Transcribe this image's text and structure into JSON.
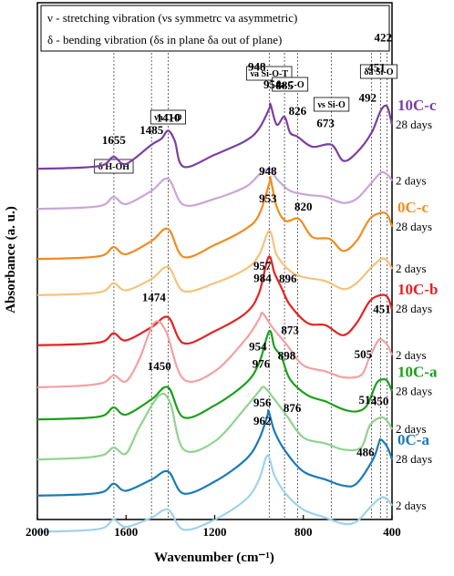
{
  "chart_data": {
    "type": "line",
    "xlabel": "Wavenumber (cm⁻¹)",
    "ylabel": "Absorbance (a. u.)",
    "xlim": [
      2000,
      400
    ],
    "x_ticks": [
      "2000",
      "1600",
      "1200",
      "800",
      "400"
    ],
    "x_tick_values": [
      2000,
      1600,
      1200,
      800,
      400
    ],
    "legend_lines": [
      "ν - stretching vibration (νs symmetrc νa asymmetric)",
      "δ - bending vibration (δs in plane δa out of plane)"
    ],
    "reference_lines": [
      1655,
      1485,
      1410,
      954,
      885,
      826,
      673,
      492,
      451,
      422
    ],
    "band_labels": [
      {
        "text": "δ  H-OH",
        "x": 1655
      },
      {
        "text": "νa C-O",
        "x": 1410
      },
      {
        "text": "νa Si-O-T",
        "x": 954
      },
      {
        "text": "δa C-O",
        "x": 860
      },
      {
        "text": "νs Si-O",
        "x": 673
      },
      {
        "text": "δa Si-O",
        "x": 460
      }
    ],
    "groups": [
      {
        "name": "10C-c",
        "color": "#7b3fa0"
      },
      {
        "name": "0C-c",
        "color": "#f08c1e"
      },
      {
        "name": "10C-b",
        "color": "#e52222"
      },
      {
        "name": "10C-a",
        "color": "#1aa01a"
      },
      {
        "name": "0C-a",
        "color": "#1a7ab8"
      }
    ],
    "series": [
      {
        "group": "10C-c",
        "age": "28 days",
        "color": "#7b3fa0",
        "offset": 8.7,
        "points": [
          [
            2000,
            0.0
          ],
          [
            1800,
            0.03
          ],
          [
            1700,
            0.1
          ],
          [
            1655,
            0.3
          ],
          [
            1600,
            0.12
          ],
          [
            1485,
            0.6
          ],
          [
            1440,
            0.75
          ],
          [
            1410,
            0.95
          ],
          [
            1380,
            0.7
          ],
          [
            1340,
            0.05
          ],
          [
            1200,
            0.35
          ],
          [
            1060,
            0.7
          ],
          [
            1000,
            1.0
          ],
          [
            954,
            1.5
          ],
          [
            948,
            1.6
          ],
          [
            920,
            1.1
          ],
          [
            885,
            1.3
          ],
          [
            860,
            0.9
          ],
          [
            826,
            0.8
          ],
          [
            760,
            0.55
          ],
          [
            673,
            0.6
          ],
          [
            620,
            0.2
          ],
          [
            560,
            0.4
          ],
          [
            492,
            0.9
          ],
          [
            451,
            1.45
          ],
          [
            422,
            1.55
          ],
          [
            400,
            1.1
          ]
        ]
      },
      {
        "group": "10C-c",
        "age": "2 days",
        "color": "#c9a6d6",
        "offset": 7.7,
        "points": [
          [
            2000,
            0.0
          ],
          [
            1800,
            0.03
          ],
          [
            1700,
            0.1
          ],
          [
            1655,
            0.3
          ],
          [
            1600,
            0.12
          ],
          [
            1485,
            0.45
          ],
          [
            1410,
            0.75
          ],
          [
            1340,
            0.1
          ],
          [
            1200,
            0.25
          ],
          [
            1060,
            0.55
          ],
          [
            1000,
            0.85
          ],
          [
            954,
            1.0
          ],
          [
            920,
            0.75
          ],
          [
            860,
            0.45
          ],
          [
            780,
            0.35
          ],
          [
            700,
            0.3
          ],
          [
            620,
            0.15
          ],
          [
            560,
            0.25
          ],
          [
            500,
            0.6
          ],
          [
            450,
            0.9
          ],
          [
            420,
            0.85
          ],
          [
            400,
            0.7
          ]
        ]
      },
      {
        "group": "0C-c",
        "age": "28 days",
        "color": "#f08c1e",
        "offset": 6.45,
        "points": [
          [
            2000,
            0.0
          ],
          [
            1800,
            0.03
          ],
          [
            1700,
            0.1
          ],
          [
            1655,
            0.3
          ],
          [
            1600,
            0.12
          ],
          [
            1485,
            0.45
          ],
          [
            1410,
            0.75
          ],
          [
            1340,
            0.05
          ],
          [
            1200,
            0.35
          ],
          [
            1060,
            0.75
          ],
          [
            1000,
            1.1
          ],
          [
            953,
            1.9
          ],
          [
            948,
            2.0
          ],
          [
            920,
            1.3
          ],
          [
            880,
            0.95
          ],
          [
            820,
            1.0
          ],
          [
            760,
            0.55
          ],
          [
            680,
            0.5
          ],
          [
            620,
            0.2
          ],
          [
            560,
            0.45
          ],
          [
            500,
            1.0
          ],
          [
            450,
            1.15
          ],
          [
            420,
            1.1
          ],
          [
            400,
            0.8
          ]
        ]
      },
      {
        "group": "0C-c",
        "age": "2 days",
        "color": "#f7c27c",
        "offset": 5.55,
        "points": [
          [
            2000,
            0.0
          ],
          [
            1800,
            0.03
          ],
          [
            1700,
            0.1
          ],
          [
            1655,
            0.3
          ],
          [
            1600,
            0.12
          ],
          [
            1485,
            0.4
          ],
          [
            1410,
            0.7
          ],
          [
            1340,
            0.1
          ],
          [
            1200,
            0.3
          ],
          [
            1060,
            0.65
          ],
          [
            1000,
            1.0
          ],
          [
            953,
            1.6
          ],
          [
            920,
            1.0
          ],
          [
            860,
            0.6
          ],
          [
            800,
            0.45
          ],
          [
            700,
            0.35
          ],
          [
            620,
            0.15
          ],
          [
            560,
            0.3
          ],
          [
            500,
            0.65
          ],
          [
            450,
            0.9
          ],
          [
            420,
            0.85
          ],
          [
            400,
            0.65
          ]
        ]
      },
      {
        "group": "10C-b",
        "age": "28 days",
        "color": "#e52222",
        "offset": 4.3,
        "points": [
          [
            2000,
            0.0
          ],
          [
            1800,
            0.03
          ],
          [
            1700,
            0.1
          ],
          [
            1655,
            0.3
          ],
          [
            1600,
            0.12
          ],
          [
            1485,
            0.45
          ],
          [
            1410,
            0.7
          ],
          [
            1340,
            0.05
          ],
          [
            1200,
            0.35
          ],
          [
            1060,
            0.8
          ],
          [
            1000,
            1.3
          ],
          [
            957,
            2.2
          ],
          [
            930,
            1.8
          ],
          [
            896,
            1.4
          ],
          [
            860,
            1.0
          ],
          [
            780,
            0.55
          ],
          [
            700,
            0.5
          ],
          [
            620,
            0.25
          ],
          [
            560,
            0.55
          ],
          [
            500,
            1.1
          ],
          [
            450,
            1.25
          ],
          [
            420,
            1.2
          ],
          [
            400,
            0.9
          ]
        ]
      },
      {
        "group": "10C-b",
        "age": "2 days",
        "color": "#f4a0a0",
        "offset": 3.25,
        "points": [
          [
            2000,
            0.0
          ],
          [
            1800,
            0.04
          ],
          [
            1700,
            0.12
          ],
          [
            1655,
            0.3
          ],
          [
            1600,
            0.15
          ],
          [
            1540,
            0.7
          ],
          [
            1474,
            1.6
          ],
          [
            1420,
            1.4
          ],
          [
            1340,
            0.2
          ],
          [
            1200,
            0.4
          ],
          [
            1060,
            1.2
          ],
          [
            1000,
            1.7
          ],
          [
            984,
            1.85
          ],
          [
            940,
            1.5
          ],
          [
            873,
            1.05
          ],
          [
            800,
            0.55
          ],
          [
            700,
            0.4
          ],
          [
            620,
            0.25
          ],
          [
            540,
            0.3
          ],
          [
            505,
            0.7
          ],
          [
            470,
            1.1
          ],
          [
            451,
            1.2
          ],
          [
            420,
            1.05
          ],
          [
            400,
            0.8
          ]
        ]
      },
      {
        "group": "10C-a",
        "age": "28 days",
        "color": "#1aa01a",
        "offset": 2.45,
        "points": [
          [
            2000,
            0.0
          ],
          [
            1800,
            0.03
          ],
          [
            1700,
            0.1
          ],
          [
            1655,
            0.3
          ],
          [
            1600,
            0.12
          ],
          [
            1485,
            0.5
          ],
          [
            1410,
            0.8
          ],
          [
            1340,
            0.05
          ],
          [
            1200,
            0.35
          ],
          [
            1060,
            0.9
          ],
          [
            1000,
            1.4
          ],
          [
            954,
            2.2
          ],
          [
            930,
            1.8
          ],
          [
            898,
            1.55
          ],
          [
            860,
            1.0
          ],
          [
            780,
            0.6
          ],
          [
            700,
            0.45
          ],
          [
            620,
            0.25
          ],
          [
            560,
            0.2
          ],
          [
            513,
            0.35
          ],
          [
            470,
            0.9
          ],
          [
            440,
            1.0
          ],
          [
            420,
            0.95
          ],
          [
            400,
            0.7
          ]
        ]
      },
      {
        "group": "10C-a",
        "age": "2 days",
        "color": "#8fd48f",
        "offset": 1.45,
        "points": [
          [
            2000,
            0.0
          ],
          [
            1800,
            0.04
          ],
          [
            1700,
            0.12
          ],
          [
            1655,
            0.3
          ],
          [
            1600,
            0.15
          ],
          [
            1540,
            0.8
          ],
          [
            1450,
            1.6
          ],
          [
            1400,
            1.4
          ],
          [
            1340,
            0.25
          ],
          [
            1200,
            0.45
          ],
          [
            1060,
            1.3
          ],
          [
            1000,
            1.7
          ],
          [
            976,
            1.8
          ],
          [
            930,
            1.5
          ],
          [
            876,
            1.1
          ],
          [
            800,
            0.55
          ],
          [
            700,
            0.4
          ],
          [
            620,
            0.25
          ],
          [
            540,
            0.3
          ],
          [
            500,
            0.85
          ],
          [
            450,
            1.05
          ],
          [
            420,
            0.95
          ],
          [
            400,
            0.75
          ]
        ]
      },
      {
        "group": "0C-a",
        "age": "28 days",
        "color": "#1a7ab8",
        "offset": 0.55,
        "points": [
          [
            2000,
            0.0
          ],
          [
            1800,
            0.03
          ],
          [
            1700,
            0.1
          ],
          [
            1655,
            0.3
          ],
          [
            1600,
            0.12
          ],
          [
            1485,
            0.4
          ],
          [
            1410,
            0.6
          ],
          [
            1340,
            0.05
          ],
          [
            1200,
            0.35
          ],
          [
            1060,
            0.9
          ],
          [
            1000,
            1.4
          ],
          [
            962,
            2.0
          ],
          [
            956,
            2.1
          ],
          [
            930,
            1.6
          ],
          [
            880,
            1.1
          ],
          [
            800,
            0.6
          ],
          [
            700,
            0.4
          ],
          [
            620,
            0.25
          ],
          [
            560,
            0.3
          ],
          [
            486,
            0.9
          ],
          [
            460,
            1.3
          ],
          [
            450,
            1.4
          ],
          [
            420,
            1.2
          ],
          [
            400,
            0.9
          ]
        ]
      },
      {
        "group": "0C-a",
        "age": "2 days",
        "color": "#9ed3ea",
        "offset": -0.35,
        "points": [
          [
            2000,
            0.0
          ],
          [
            1800,
            0.03
          ],
          [
            1700,
            0.1
          ],
          [
            1655,
            0.3
          ],
          [
            1600,
            0.12
          ],
          [
            1485,
            0.35
          ],
          [
            1410,
            0.55
          ],
          [
            1340,
            0.05
          ],
          [
            1200,
            0.3
          ],
          [
            1060,
            0.8
          ],
          [
            1000,
            1.3
          ],
          [
            962,
            1.9
          ],
          [
            930,
            1.4
          ],
          [
            880,
            0.95
          ],
          [
            800,
            0.55
          ],
          [
            700,
            0.35
          ],
          [
            620,
            0.2
          ],
          [
            560,
            0.25
          ],
          [
            500,
            0.6
          ],
          [
            450,
            0.85
          ],
          [
            420,
            0.8
          ],
          [
            400,
            0.65
          ]
        ]
      }
    ],
    "peak_labels": [
      {
        "text": "1655",
        "x": 1655,
        "series": 0,
        "dy": -14
      },
      {
        "text": "1485",
        "x": 1485,
        "series": 0,
        "dy": -12
      },
      {
        "text": "1410",
        "x": 1410,
        "series": 0,
        "dy": -10
      },
      {
        "text": "948",
        "x": 1010,
        "series": 0,
        "dy": -66
      },
      {
        "text": "954",
        "x": 940,
        "series": 0,
        "dy": -24
      },
      {
        "text": "885",
        "x": 885,
        "series": 0,
        "dy": -30
      },
      {
        "text": "826",
        "x": 826,
        "series": 0,
        "dy": -24
      },
      {
        "text": "673",
        "x": 700,
        "series": 0,
        "dy": -20
      },
      {
        "text": "492",
        "x": 510,
        "series": 0,
        "dy": -40
      },
      {
        "text": "451",
        "x": 470,
        "series": 0,
        "dy": -54
      },
      {
        "text": "422",
        "x": 440,
        "series": 0,
        "dy": -74
      },
      {
        "text": "948",
        "x": 960,
        "series": 2,
        "dy": -14
      },
      {
        "text": "953",
        "x": 960,
        "series": 2,
        "dy": 16
      },
      {
        "text": "820",
        "x": 800,
        "series": 2,
        "dy": -16
      },
      {
        "text": "957",
        "x": 985,
        "series": 4,
        "dy": -12
      },
      {
        "text": "896",
        "x": 870,
        "series": 4,
        "dy": -20
      },
      {
        "text": "984",
        "x": 984,
        "series": 5,
        "dy": -34
      },
      {
        "text": "873",
        "x": 860,
        "series": 5,
        "dy": -16
      },
      {
        "text": "1474",
        "x": 1474,
        "series": 5,
        "dy": -24
      },
      {
        "text": "451",
        "x": 445,
        "series": 5,
        "dy": -30
      },
      {
        "text": "505",
        "x": 530,
        "series": 5,
        "dy": -14
      },
      {
        "text": "954",
        "x": 1005,
        "series": 6,
        "dy": -16
      },
      {
        "text": "898",
        "x": 875,
        "series": 6,
        "dy": -12
      },
      {
        "text": "976",
        "x": 990,
        "series": 7,
        "dy": -24
      },
      {
        "text": "876",
        "x": 850,
        "series": 7,
        "dy": -12
      },
      {
        "text": "1450",
        "x": 1450,
        "series": 7,
        "dy": -28
      },
      {
        "text": "513",
        "x": 510,
        "series": 7,
        "dy": -30
      },
      {
        "text": "956",
        "x": 985,
        "series": 8,
        "dy": -26
      },
      {
        "text": "962",
        "x": 985,
        "series": 8,
        "dy": -6
      },
      {
        "text": "486",
        "x": 520,
        "series": 8,
        "dy": -16
      },
      {
        "text": "450",
        "x": 455,
        "series": 8,
        "dy": -40
      }
    ]
  }
}
